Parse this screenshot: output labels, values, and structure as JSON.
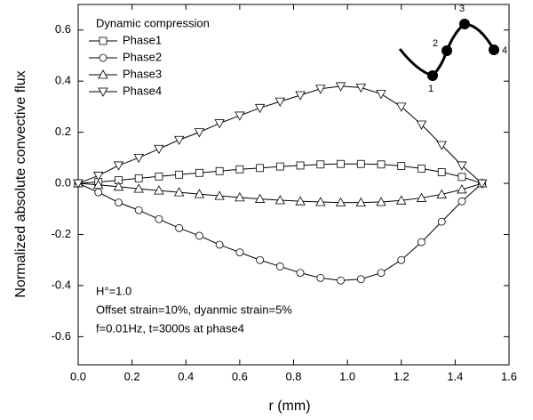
{
  "chart_data": {
    "type": "line",
    "xlabel": "r (mm)",
    "ylabel": "Normalized absolute convective flux",
    "legend_title": "Dynamic compression",
    "legend": "upper left",
    "x": [
      0,
      0.075,
      0.15,
      0.225,
      0.3,
      0.375,
      0.45,
      0.525,
      0.6,
      0.675,
      0.75,
      0.825,
      0.9,
      0.975,
      1.05,
      1.125,
      1.2,
      1.275,
      1.35,
      1.425,
      1.5
    ],
    "series": [
      {
        "name": "Phase1",
        "color": "#000000",
        "marker": "square",
        "values": [
          0,
          0.005,
          0.012,
          0.02,
          0.027,
          0.034,
          0.041,
          0.048,
          0.055,
          0.06,
          0.066,
          0.07,
          0.074,
          0.076,
          0.076,
          0.074,
          0.068,
          0.058,
          0.044,
          0.025,
          0
        ]
      },
      {
        "name": "Phase2",
        "color": "#000000",
        "marker": "circle",
        "values": [
          0,
          -0.035,
          -0.075,
          -0.105,
          -0.14,
          -0.175,
          -0.205,
          -0.24,
          -0.27,
          -0.3,
          -0.325,
          -0.35,
          -0.37,
          -0.38,
          -0.375,
          -0.35,
          -0.3,
          -0.23,
          -0.15,
          -0.07,
          0
        ]
      },
      {
        "name": "Phase3",
        "color": "#000000",
        "marker": "triangle-up",
        "values": [
          0,
          -0.006,
          -0.013,
          -0.021,
          -0.028,
          -0.035,
          -0.042,
          -0.049,
          -0.055,
          -0.061,
          -0.066,
          -0.07,
          -0.073,
          -0.075,
          -0.075,
          -0.073,
          -0.067,
          -0.057,
          -0.043,
          -0.024,
          0
        ]
      },
      {
        "name": "Phase4",
        "color": "#000000",
        "marker": "triangle-down",
        "values": [
          0,
          0.03,
          0.07,
          0.1,
          0.135,
          0.17,
          0.2,
          0.235,
          0.265,
          0.295,
          0.32,
          0.345,
          0.37,
          0.38,
          0.375,
          0.35,
          0.3,
          0.23,
          0.15,
          0.07,
          0
        ]
      }
    ],
    "xlim": [
      0,
      1.6
    ],
    "xticks": [
      {
        "value": 0,
        "label": "0.0"
      },
      0.2,
      0.4,
      0.6,
      0.8,
      {
        "value": 1,
        "label": "1.0"
      },
      1.2,
      1.4,
      1.6
    ],
    "ylim": [
      -0.71,
      0.7
    ],
    "yticks": [
      -0.6,
      -0.4,
      -0.2,
      {
        "value": 0,
        "label": "0.0"
      },
      0.2,
      0.4,
      0.6
    ],
    "annotations": [
      "H°=1.0",
      "Offset strain=10%, dyanmic strain=5%",
      "f=0.01Hz, t=3000s at phase4"
    ],
    "inset_labels": [
      "1",
      "2",
      "3",
      "4"
    ]
  }
}
